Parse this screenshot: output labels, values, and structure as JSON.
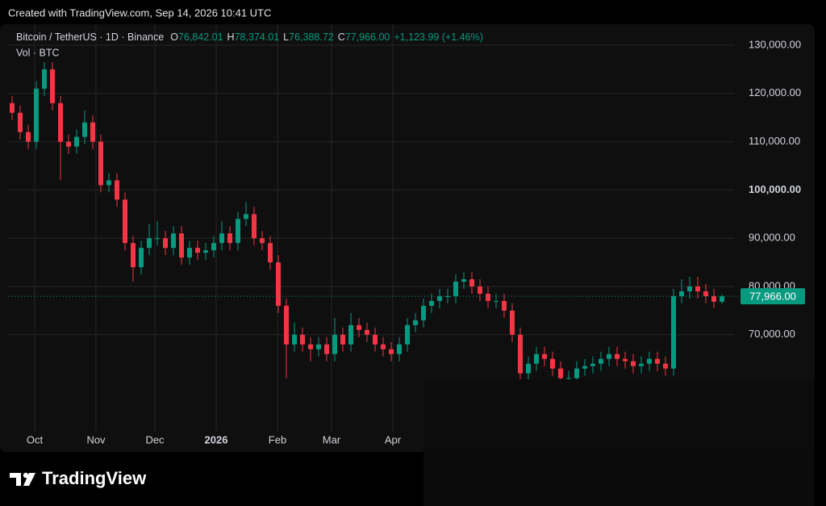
{
  "caption": "Created with TradingView.com, Sep 14, 2026 10:41 UTC",
  "brand": "TradingView",
  "chart_data": {
    "type": "candlestick",
    "header": {
      "symbol": "Bitcoin / TetherUS · 1D · Binance",
      "items": [
        {
          "key": "O",
          "value": "76,842.01"
        },
        {
          "key": "H",
          "value": "78,374.01"
        },
        {
          "key": "L",
          "value": "76,388.72"
        },
        {
          "key": "C",
          "value": "77,966.00"
        }
      ],
      "change": "+1,123.99 (+1.46%)",
      "volume": "Vol · BTC"
    },
    "up_color": "#089981",
    "down_color": "#f23645",
    "open": [
      118000,
      116000,
      112000,
      110000,
      121000,
      125000,
      118000,
      110000,
      109000,
      111000,
      114000,
      110000,
      101000,
      102000,
      98000,
      89000,
      84000,
      88000,
      90000,
      90000,
      88000,
      91000,
      86000,
      88000,
      87000,
      87500,
      89000,
      91000,
      89000,
      94000,
      95000,
      90000,
      89000,
      85000,
      76000,
      68000,
      70000,
      68000,
      67000,
      68000,
      66000,
      70000,
      68000,
      72000,
      71000,
      70000,
      68000,
      67000,
      66000,
      68000,
      72000,
      73000,
      76000,
      77000,
      78000,
      78000,
      81000,
      81500,
      80000,
      78500,
      77000,
      77000,
      75000,
      70000,
      62000,
      64000,
      66000,
      65000,
      63000,
      61000,
      61000,
      63000,
      63500,
      64000,
      65000,
      66000,
      65000,
      64500,
      63500,
      64000,
      65000,
      64000,
      63000,
      78000,
      79000,
      80000,
      79000,
      78000,
      76842.01
    ],
    "high": [
      119500,
      117500,
      113500,
      122500,
      126500,
      126500,
      119500,
      111500,
      112500,
      116500,
      115500,
      111500,
      103500,
      103500,
      99500,
      90500,
      89500,
      93000,
      93500,
      91500,
      92500,
      92500,
      89500,
      89500,
      89000,
      90500,
      93500,
      92500,
      95500,
      97500,
      96500,
      91500,
      90500,
      86500,
      77500,
      72500,
      71500,
      69500,
      69500,
      69500,
      73500,
      71500,
      74500,
      73500,
      72500,
      71500,
      69500,
      68500,
      69500,
      73500,
      74500,
      77500,
      78500,
      79500,
      79500,
      82500,
      83000,
      83000,
      81500,
      80000,
      78500,
      78500,
      76500,
      71500,
      65500,
      67500,
      67500,
      66500,
      64500,
      62500,
      64500,
      65000,
      65500,
      66500,
      67500,
      67500,
      66500,
      66000,
      65500,
      66500,
      66500,
      65500,
      79500,
      81500,
      82000,
      82000,
      80500,
      79500,
      78374.01
    ],
    "low": [
      114500,
      110500,
      108500,
      108500,
      119500,
      116500,
      102000,
      107500,
      107500,
      109500,
      108500,
      99500,
      99500,
      96500,
      87500,
      81000,
      82500,
      86500,
      88500,
      86500,
      86500,
      84500,
      84500,
      85500,
      85500,
      86000,
      87500,
      87500,
      87500,
      92500,
      88500,
      87500,
      83500,
      74500,
      61000,
      66500,
      66500,
      64500,
      65500,
      64500,
      64500,
      66500,
      66500,
      69500,
      68500,
      66500,
      65500,
      64500,
      64500,
      66500,
      70500,
      71500,
      74500,
      75500,
      76500,
      76500,
      79500,
      78500,
      77000,
      75500,
      75500,
      73500,
      68500,
      60500,
      60500,
      62500,
      63500,
      61500,
      59500,
      59500,
      59500,
      61500,
      62000,
      62500,
      63500,
      63500,
      63000,
      62000,
      62000,
      62500,
      62500,
      61500,
      61500,
      76500,
      77500,
      77500,
      76500,
      75500,
      76388.72
    ],
    "close": [
      116000,
      112000,
      110000,
      121000,
      125000,
      118000,
      110000,
      109000,
      111000,
      114000,
      110000,
      101000,
      102000,
      98000,
      89000,
      84000,
      88000,
      90000,
      90000,
      88000,
      91000,
      86000,
      88000,
      87000,
      87500,
      89000,
      91000,
      89000,
      94000,
      95000,
      90000,
      89000,
      85000,
      76000,
      68000,
      70000,
      68000,
      67000,
      68000,
      66000,
      70000,
      68000,
      72000,
      71000,
      70000,
      68000,
      67000,
      66000,
      68000,
      72000,
      73000,
      76000,
      77000,
      78000,
      78000,
      81000,
      81500,
      80000,
      78500,
      77000,
      77000,
      75000,
      70000,
      62000,
      64000,
      66000,
      65000,
      63000,
      61000,
      61000,
      63000,
      63500,
      64000,
      65000,
      66000,
      65000,
      64500,
      63500,
      64000,
      65000,
      64000,
      63000,
      78000,
      79000,
      80000,
      79000,
      78000,
      76842.01,
      77966
    ],
    "xlim": [
      -0.5,
      89.5
    ],
    "xticks": [
      {
        "value": 2.8,
        "label": "Oct"
      },
      {
        "value": 10.4,
        "label": "Nov"
      },
      {
        "value": 17.7,
        "label": "Dec"
      },
      {
        "value": 25.3,
        "label": "2026"
      },
      {
        "value": 32.9,
        "label": "Feb"
      },
      {
        "value": 39.6,
        "label": "Mar"
      },
      {
        "value": 47.2,
        "label": "Apr"
      }
    ],
    "ylim": [
      49900,
      134350
    ],
    "yticks": [
      {
        "value": 70000,
        "label": "70,000.00"
      },
      {
        "value": 80000,
        "label": "80,000.00"
      },
      {
        "value": 90000,
        "label": "90,000.00"
      },
      {
        "value": 100000,
        "label": "100,000.00"
      },
      {
        "value": 110000,
        "label": "110,000.00"
      },
      {
        "value": 120000,
        "label": "120,000.00"
      },
      {
        "value": 130000,
        "label": "130,000.00"
      }
    ],
    "grid": true
  }
}
